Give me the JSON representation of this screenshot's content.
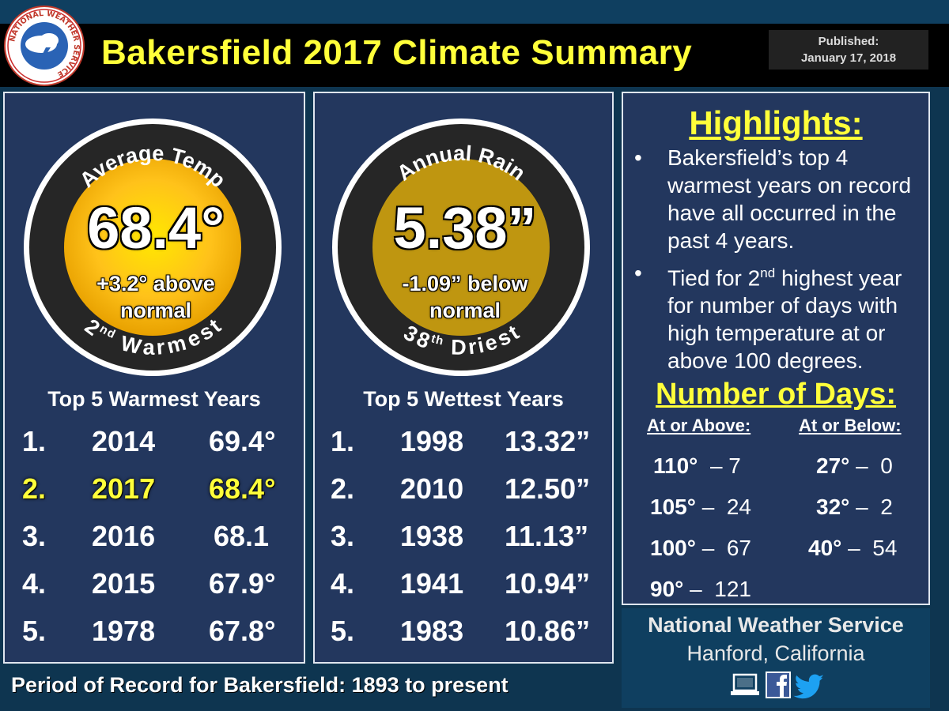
{
  "header": {
    "title": "Bakersfield 2017 Climate Summary",
    "published_label": "Published:",
    "published_date": "January 17, 2018",
    "logo_text": "NATIONAL WEATHER SERVICE"
  },
  "temp": {
    "arc_top": "Average Temp",
    "value": "68.4°",
    "delta_line1": "+3.2° above",
    "delta_line2": "normal",
    "rank_num": "2",
    "rank_sup": "nd",
    "rank_word": "Warmest",
    "list_title": "Top 5 Warmest Years",
    "rows": [
      {
        "rank": "1.",
        "year": "2014",
        "value": "69.4°"
      },
      {
        "rank": "2.",
        "year": "2017",
        "value": "68.4°"
      },
      {
        "rank": "3.",
        "year": "2016",
        "value": "68.1"
      },
      {
        "rank": "4.",
        "year": "2015",
        "value": "67.9°"
      },
      {
        "rank": "5.",
        "year": "1978",
        "value": "67.8°"
      }
    ]
  },
  "rain": {
    "arc_top": "Annual Rain",
    "value": "5.38”",
    "delta_line1": "-1.09” below",
    "delta_line2": "normal",
    "rank_num": "38",
    "rank_sup": "th",
    "rank_word": "Driest",
    "list_title": "Top 5 Wettest Years",
    "rows": [
      {
        "rank": "1.",
        "year": "1998",
        "value": "13.32”"
      },
      {
        "rank": "2.",
        "year": "2010",
        "value": "12.50”"
      },
      {
        "rank": "3.",
        "year": "1938",
        "value": "11.13”"
      },
      {
        "rank": "4.",
        "year": "1941",
        "value": "10.94”"
      },
      {
        "rank": "5.",
        "year": "1983",
        "value": "10.86”"
      }
    ]
  },
  "highlights": {
    "title": "Highlights:",
    "bullet1": "Bakersfield’s top 4 warmest years on record have all occurred in the past 4 years.",
    "bullet2_a": "Tied for 2",
    "bullet2_sup": "nd",
    "bullet2_b": " highest year for number of days with high temperature at or above 100 degrees."
  },
  "days": {
    "title": "Number of Days:",
    "above_label": "At or Above:",
    "below_label": "At or Below:",
    "above": [
      {
        "temp": "110°",
        "count": "– 7"
      },
      {
        "temp": "105°",
        "count": "–  24"
      },
      {
        "temp": "100°",
        "count": "–  67"
      },
      {
        "temp": "90°",
        "count": "–  121"
      }
    ],
    "below": [
      {
        "temp": "27°",
        "count": "–  0"
      },
      {
        "temp": "32°",
        "count": "–  2"
      },
      {
        "temp": "40°",
        "count": "–  54"
      }
    ]
  },
  "nws": {
    "name": "National Weather Service",
    "location": "Hanford, California"
  },
  "footer": "Period of Record for Bakersfield: 1893 to present"
}
